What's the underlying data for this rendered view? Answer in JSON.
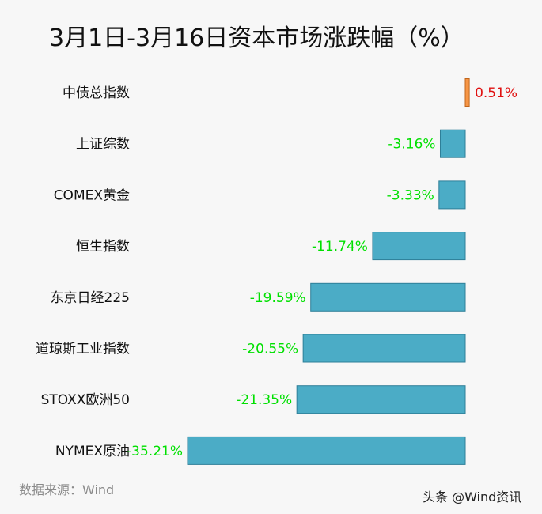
{
  "chart_data": {
    "type": "bar",
    "orientation": "horizontal",
    "title": "3月1日-3月16日资本市场涨跌幅（%）",
    "categories": [
      "中债总指数",
      "上证综数",
      "COMEX黄金",
      "恒生指数",
      "东京日经225",
      "道琼斯工业指数",
      "STOXX欧洲50",
      "NYMEX原油"
    ],
    "values": [
      0.51,
      -3.16,
      -3.33,
      -11.74,
      -19.59,
      -20.55,
      -21.35,
      -35.21
    ],
    "labels": [
      "0.51%",
      "-3.16%",
      "-3.33%",
      "-11.74%",
      "-19.59%",
      "-20.55%",
      "-21.35%",
      "-35.21%"
    ],
    "xlim": [
      -35.21,
      0.51
    ],
    "grid": false,
    "legend": "none"
  },
  "colors": {
    "negative_bar": "#4bacc6",
    "negative_bar_border": "#2e7f98",
    "positive_bar": "#f79646",
    "positive_bar_border": "#c0651c",
    "negative_label": "#00e000",
    "positive_label": "#e01010"
  },
  "source": "数据来源：Wind",
  "watermark": "头条 @Wind资讯"
}
